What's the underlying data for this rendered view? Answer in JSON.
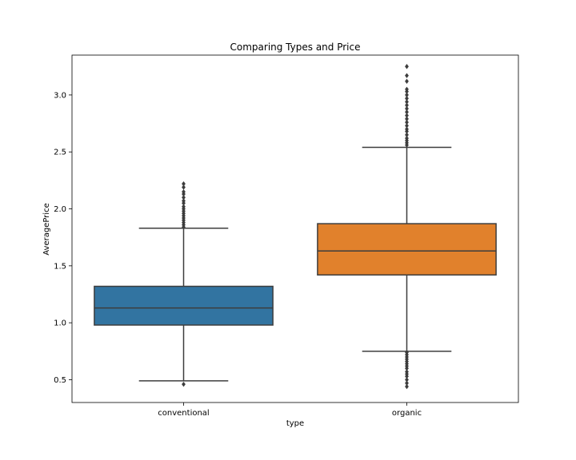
{
  "chart_data": {
    "type": "box",
    "title": "Comparing Types and Price",
    "xlabel": "type",
    "ylabel": "AveragePrice",
    "ylim": [
      0.3,
      3.35
    ],
    "yticks": [
      0.5,
      1.0,
      1.5,
      2.0,
      2.5,
      3.0
    ],
    "ytick_labels": [
      "0.5",
      "1.0",
      "1.5",
      "2.0",
      "2.5",
      "3.0"
    ],
    "grid": false,
    "categories": [
      "conventional",
      "organic"
    ],
    "boxes": [
      {
        "category": "conventional",
        "color": "#3274a1",
        "q1": 0.98,
        "median": 1.13,
        "q3": 1.32,
        "whisker_low": 0.49,
        "whisker_high": 1.83,
        "outliers": [
          0.46,
          1.84,
          1.86,
          1.88,
          1.9,
          1.92,
          1.94,
          1.96,
          1.98,
          2.0,
          2.02,
          2.05,
          2.07,
          2.1,
          2.13,
          2.15,
          2.19,
          2.22
        ]
      },
      {
        "category": "organic",
        "color": "#e1812c",
        "q1": 1.42,
        "median": 1.63,
        "q3": 1.87,
        "whisker_low": 0.75,
        "whisker_high": 2.54,
        "outliers": [
          0.44,
          0.47,
          0.5,
          0.53,
          0.55,
          0.57,
          0.6,
          0.62,
          0.64,
          0.66,
          0.68,
          0.7,
          0.72,
          0.74,
          2.56,
          2.58,
          2.6,
          2.62,
          2.65,
          2.68,
          2.7,
          2.73,
          2.76,
          2.79,
          2.82,
          2.85,
          2.88,
          2.91,
          2.94,
          2.97,
          3.0,
          3.03,
          3.05,
          3.12,
          3.17,
          3.25
        ]
      }
    ]
  }
}
